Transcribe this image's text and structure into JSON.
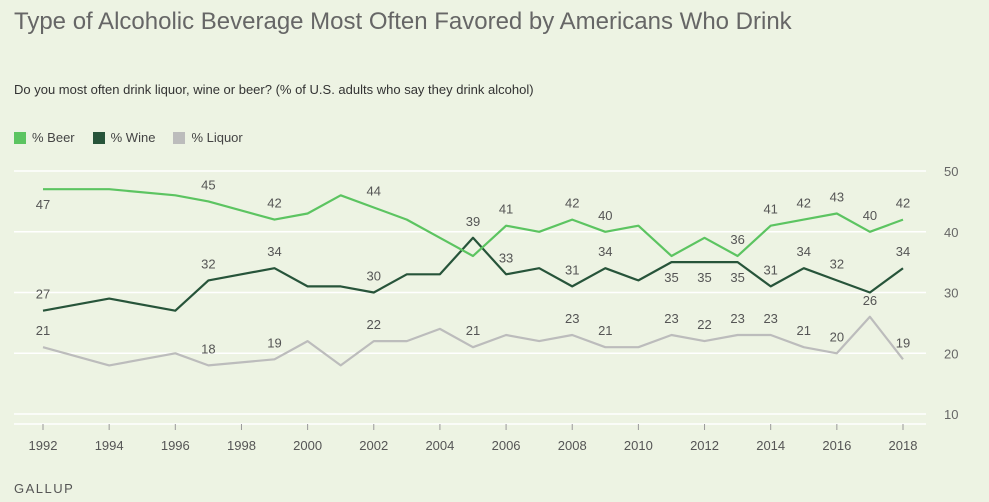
{
  "title": "Type of Alcoholic Beverage Most Often Favored by Americans Who Drink",
  "subtitle": "Do you most often drink liquor, wine or beer? (% of U.S. adults who say they drink alcohol)",
  "source": "GALLUP",
  "chart_data": {
    "type": "line",
    "title": "Type of Alcoholic Beverage Most Often Favored by Americans Who Drink",
    "xlabel": "",
    "ylabel": "",
    "ylim": [
      10,
      50
    ],
    "yticks": [
      10,
      20,
      30,
      40,
      50
    ],
    "xlim": [
      1992,
      2018
    ],
    "xticks": [
      1992,
      1994,
      1996,
      1998,
      2000,
      2002,
      2004,
      2006,
      2008,
      2010,
      2012,
      2014,
      2016,
      2018
    ],
    "legend_position": "top-left",
    "grid": true,
    "series": [
      {
        "name": "% Beer",
        "color": "#5cc461",
        "x": [
          1992,
          1994,
          1996,
          1997,
          1999,
          2000,
          2001,
          2002,
          2003,
          2004,
          2005,
          2006,
          2007,
          2008,
          2009,
          2010,
          2011,
          2012,
          2013,
          2014,
          2015,
          2016,
          2017,
          2018
        ],
        "values": [
          47,
          47,
          46,
          45,
          42,
          43,
          46,
          44,
          42,
          39,
          36,
          41,
          40,
          42,
          40,
          41,
          36,
          39,
          36,
          41,
          42,
          43,
          40,
          42
        ],
        "labels": [
          {
            "x": 1992,
            "text": "47",
            "pos": "below"
          },
          {
            "x": 1997,
            "text": "45",
            "pos": "above"
          },
          {
            "x": 1999,
            "text": "42",
            "pos": "above"
          },
          {
            "x": 2002,
            "text": "44",
            "pos": "above"
          },
          {
            "x": 2006,
            "text": "41",
            "pos": "above"
          },
          {
            "x": 2008,
            "text": "42",
            "pos": "above"
          },
          {
            "x": 2009,
            "text": "40",
            "pos": "above"
          },
          {
            "x": 2013,
            "text": "36",
            "pos": "above"
          },
          {
            "x": 2014,
            "text": "41",
            "pos": "above"
          },
          {
            "x": 2015,
            "text": "42",
            "pos": "above"
          },
          {
            "x": 2016,
            "text": "43",
            "pos": "above"
          },
          {
            "x": 2017,
            "text": "40",
            "pos": "above"
          },
          {
            "x": 2018,
            "text": "42",
            "pos": "above"
          }
        ]
      },
      {
        "name": "% Wine",
        "color": "#27543a",
        "x": [
          1992,
          1994,
          1996,
          1997,
          1999,
          2000,
          2001,
          2002,
          2003,
          2004,
          2005,
          2006,
          2007,
          2008,
          2009,
          2010,
          2011,
          2012,
          2013,
          2014,
          2015,
          2016,
          2017,
          2018
        ],
        "values": [
          27,
          29,
          27,
          32,
          34,
          31,
          31,
          30,
          33,
          33,
          39,
          33,
          34,
          31,
          34,
          32,
          35,
          35,
          35,
          31,
          34,
          32,
          30,
          34
        ],
        "labels": [
          {
            "x": 1992,
            "text": "27",
            "pos": "above"
          },
          {
            "x": 1997,
            "text": "32",
            "pos": "above"
          },
          {
            "x": 1999,
            "text": "34",
            "pos": "above"
          },
          {
            "x": 2002,
            "text": "30",
            "pos": "above"
          },
          {
            "x": 2005,
            "text": "39",
            "pos": "above"
          },
          {
            "x": 2006,
            "text": "33",
            "pos": "above"
          },
          {
            "x": 2008,
            "text": "31",
            "pos": "above"
          },
          {
            "x": 2009,
            "text": "34",
            "pos": "above"
          },
          {
            "x": 2011,
            "text": "35",
            "pos": "below"
          },
          {
            "x": 2012,
            "text": "35",
            "pos": "below"
          },
          {
            "x": 2013,
            "text": "35",
            "pos": "below"
          },
          {
            "x": 2014,
            "text": "31",
            "pos": "above"
          },
          {
            "x": 2015,
            "text": "34",
            "pos": "above"
          },
          {
            "x": 2016,
            "text": "32",
            "pos": "above"
          },
          {
            "x": 2018,
            "text": "34",
            "pos": "above"
          }
        ]
      },
      {
        "name": "% Liquor",
        "color": "#bcbcbc",
        "x": [
          1992,
          1994,
          1996,
          1997,
          1999,
          2000,
          2001,
          2002,
          2003,
          2004,
          2005,
          2006,
          2007,
          2008,
          2009,
          2010,
          2011,
          2012,
          2013,
          2014,
          2015,
          2016,
          2017,
          2018
        ],
        "values": [
          21,
          18,
          20,
          18,
          19,
          22,
          18,
          22,
          22,
          24,
          21,
          23,
          22,
          23,
          21,
          21,
          23,
          22,
          23,
          23,
          21,
          20,
          26,
          19
        ],
        "labels": [
          {
            "x": 1992,
            "text": "21",
            "pos": "above"
          },
          {
            "x": 1997,
            "text": "18",
            "pos": "above"
          },
          {
            "x": 1999,
            "text": "19",
            "pos": "above"
          },
          {
            "x": 2002,
            "text": "22",
            "pos": "above"
          },
          {
            "x": 2005,
            "text": "21",
            "pos": "above"
          },
          {
            "x": 2008,
            "text": "23",
            "pos": "above"
          },
          {
            "x": 2009,
            "text": "21",
            "pos": "above"
          },
          {
            "x": 2011,
            "text": "23",
            "pos": "above"
          },
          {
            "x": 2012,
            "text": "22",
            "pos": "above"
          },
          {
            "x": 2013,
            "text": "23",
            "pos": "above"
          },
          {
            "x": 2014,
            "text": "23",
            "pos": "above"
          },
          {
            "x": 2015,
            "text": "21",
            "pos": "above"
          },
          {
            "x": 2016,
            "text": "20",
            "pos": "above"
          },
          {
            "x": 2017,
            "text": "26",
            "pos": "above"
          },
          {
            "x": 2018,
            "text": "19",
            "pos": "above"
          }
        ]
      }
    ]
  }
}
